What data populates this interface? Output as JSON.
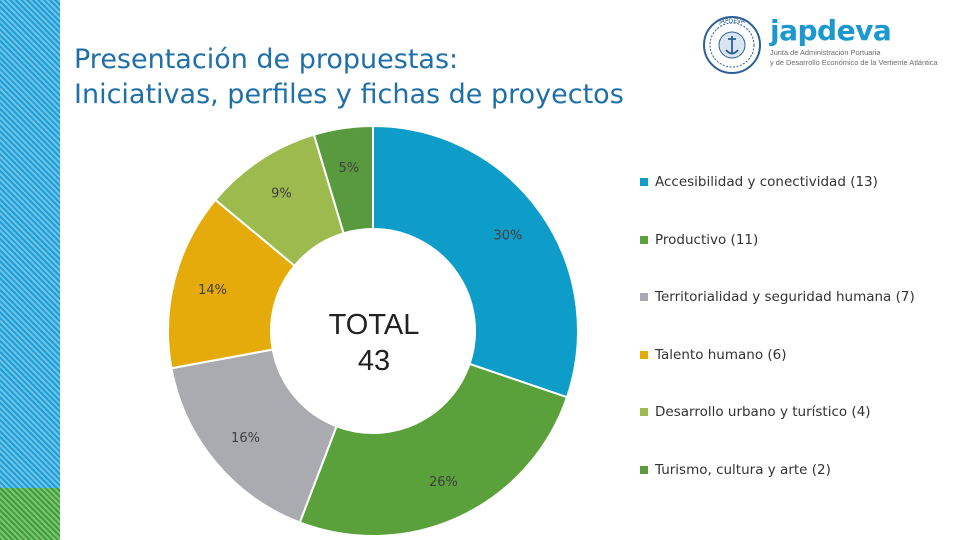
{
  "slide": {
    "title_line1": "Presentación de propuestas:",
    "title_line2": "Iniciativas, perfiles y fichas de proyectos"
  },
  "logo": {
    "wordmark": "japdeva",
    "subtitle_line1": "Junta de Administración Portuaria",
    "subtitle_line2": "y de Desarrollo Económico de la Vertiente Atlántica",
    "seal_text": "JAPDEVA",
    "seal_icon": "anchor-seal-icon",
    "wordmark_color": "#1a98cf"
  },
  "chart_data": {
    "type": "pie",
    "style": "donut",
    "center_text_line1": "TOTAL",
    "center_text_line2": "43",
    "legend_position": "right",
    "slices": [
      {
        "label": "Accesibilidad y conectividad (13)",
        "value": 13,
        "percent_label": "30%",
        "color": "#0e9dc9"
      },
      {
        "label": "Productivo (11)",
        "value": 11,
        "percent_label": "26%",
        "color": "#5aa13c"
      },
      {
        "label": "Territorialidad y seguridad humana (7)",
        "value": 7,
        "percent_label": "16%",
        "color": "#a9abb0"
      },
      {
        "label": "Talento humano (6)",
        "value": 6,
        "percent_label": "14%",
        "color": "#e4ab0a"
      },
      {
        "label": "Desarrollo urbano y turístico (4)",
        "value": 4,
        "percent_label": "9%",
        "color": "#9dba4f"
      },
      {
        "label": "Turismo, cultura y arte (2)",
        "value": 2,
        "percent_label": "5%",
        "color": "#5a9a3e"
      }
    ]
  }
}
